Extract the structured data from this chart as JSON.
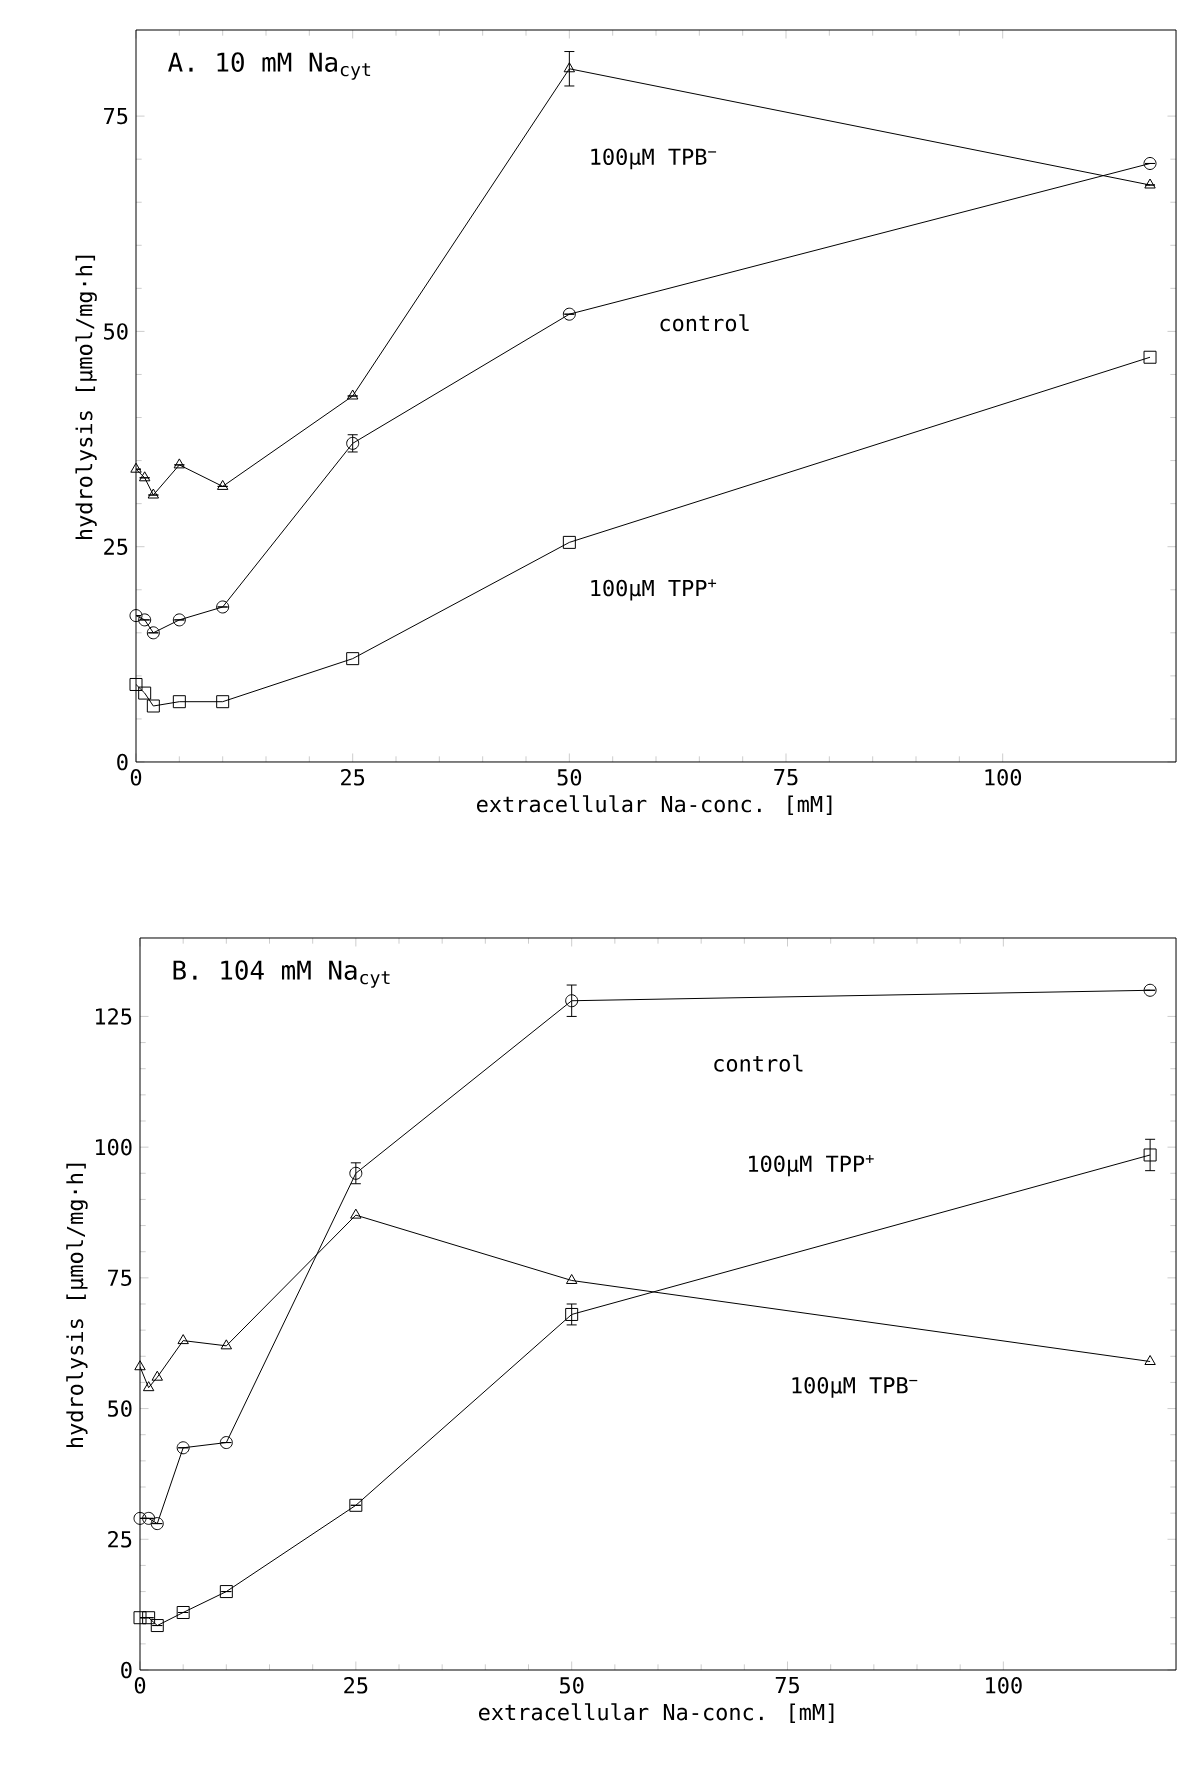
{
  "chart_data": [
    {
      "type": "line",
      "title": "A. 10 mM Na$_{cyt}$",
      "xlabel": "extracellular Na-conc. [mM]",
      "ylabel": "hydrolysis [µmol/mg·h]",
      "xlim": [
        0,
        120
      ],
      "ylim": [
        0,
        85
      ],
      "xticks": [
        0,
        25,
        50,
        75,
        100
      ],
      "yticks": [
        0,
        25,
        50,
        75
      ],
      "line_style": "solid",
      "series": [
        {
          "name": "100µM TPB$^{−}$",
          "color": "#000000",
          "marker": "triangle",
          "x": [
            0,
            1,
            2,
            5,
            10,
            25,
            50,
            117
          ],
          "values": [
            34,
            33,
            31,
            34.5,
            32,
            42.5,
            80.5,
            67
          ],
          "errors": [
            null,
            null,
            null,
            null,
            null,
            null,
            2,
            null
          ]
        },
        {
          "name": "control",
          "color": "#000000",
          "marker": "circle",
          "x": [
            0,
            1,
            2,
            5,
            10,
            25,
            50,
            117
          ],
          "values": [
            17,
            16.5,
            15,
            16.5,
            18,
            37,
            52,
            69.5
          ],
          "errors": [
            null,
            null,
            null,
            null,
            null,
            1,
            null,
            null
          ]
        },
        {
          "name": "100µM TPP$^{+}$",
          "color": "#000000",
          "marker": "square",
          "x": [
            0,
            1,
            2,
            5,
            10,
            25,
            50,
            117
          ],
          "values": [
            9,
            8,
            6.5,
            7,
            7,
            12,
            25.5,
            47
          ]
        }
      ]
    },
    {
      "type": "line",
      "title": "B. 104 mM Na$_{cyt}$",
      "xlabel": "extracellular Na-conc. [mM]",
      "ylabel": "hydrolysis [µmol/mg·h]",
      "xlim": [
        0,
        120
      ],
      "ylim": [
        0,
        140
      ],
      "xticks": [
        0,
        25,
        50,
        75,
        100
      ],
      "yticks": [
        0,
        25,
        50,
        75,
        100,
        125
      ],
      "line_style": "solid",
      "series": [
        {
          "name": "control",
          "color": "#000000",
          "marker": "circle",
          "x": [
            0,
            1,
            2,
            5,
            10,
            25,
            50,
            117
          ],
          "values": [
            29,
            29,
            28,
            42.5,
            43.5,
            95,
            128,
            130
          ],
          "errors": [
            null,
            null,
            null,
            null,
            null,
            2,
            3,
            null
          ]
        },
        {
          "name": "100µM TPP$^{+}$",
          "color": "#000000",
          "marker": "square",
          "x": [
            0,
            1,
            2,
            5,
            10,
            25,
            50,
            117
          ],
          "values": [
            10,
            10,
            8.5,
            11,
            15,
            31.5,
            68,
            98.5
          ],
          "errors": [
            null,
            null,
            null,
            null,
            null,
            null,
            2,
            3
          ]
        },
        {
          "name": "100µM TPB$^{−}$",
          "color": "#000000",
          "marker": "triangle",
          "x": [
            0,
            1,
            2,
            5,
            10,
            25,
            50,
            117
          ],
          "values": [
            58,
            54,
            56,
            63,
            62,
            87,
            74.5,
            59
          ]
        }
      ]
    }
  ]
}
